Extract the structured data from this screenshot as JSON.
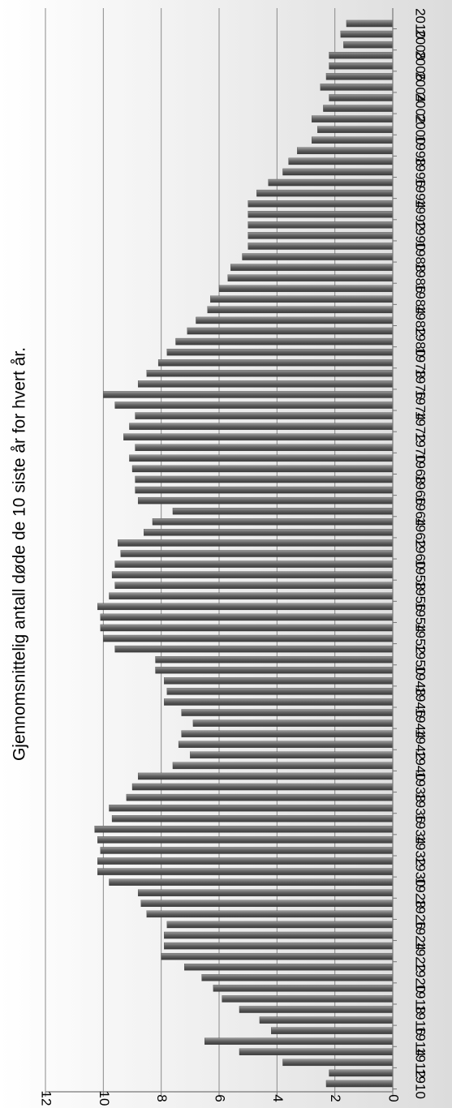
{
  "chart_data": {
    "type": "bar",
    "orientation": "horizontal",
    "title": "Gjennomsnittelig antall døde de 10 siste år for hvert år.",
    "xlabel": "",
    "ylabel": "",
    "value_axis": {
      "min": 0,
      "max": 12,
      "ticks": [
        0,
        2,
        4,
        6,
        8,
        10,
        12
      ]
    },
    "category_ticks": [
      "1910",
      "1912",
      "1914",
      "1916",
      "1918",
      "1920",
      "1922",
      "1924",
      "1926",
      "1928",
      "1930",
      "1932",
      "1934",
      "1936",
      "1938",
      "1940",
      "1942",
      "1944",
      "1946",
      "1948",
      "1950",
      "1952",
      "1954",
      "1956",
      "1958",
      "1960",
      "1962",
      "1964",
      "1966",
      "1968",
      "1970",
      "1972",
      "1974",
      "1976",
      "1978",
      "1980",
      "1982",
      "1984",
      "1986",
      "1988",
      "1990",
      "1992",
      "1994",
      "1996",
      "1998",
      "2000",
      "2002",
      "2004",
      "2006",
      "2008",
      "2010"
    ],
    "grid": true,
    "legend": "none",
    "bar_color": "#6a6a6a",
    "background_color": "#e6e6e6",
    "series": [
      {
        "x": [
          1910,
          1911,
          1912,
          1913,
          1914,
          1915,
          1916,
          1917,
          1918,
          1919,
          1920,
          1921,
          1922,
          1923,
          1924,
          1925,
          1926,
          1927,
          1928,
          1929,
          1930,
          1931,
          1932,
          1933,
          1934,
          1935,
          1936,
          1937,
          1938,
          1939,
          1940,
          1941,
          1942,
          1943,
          1944,
          1945,
          1946,
          1947,
          1948,
          1949,
          1950,
          1951,
          1952,
          1953,
          1954,
          1955,
          1956,
          1957,
          1958,
          1959,
          1960,
          1961,
          1962,
          1963,
          1964,
          1965,
          1966,
          1967,
          1968,
          1969,
          1970,
          1971,
          1972,
          1973,
          1974,
          1975,
          1976,
          1977,
          1978,
          1979,
          1980,
          1981,
          1982,
          1983,
          1984,
          1985,
          1986,
          1987,
          1988,
          1989,
          1990,
          1991,
          1992,
          1993,
          1994,
          1995,
          1996,
          1997,
          1998,
          1999,
          2000,
          2001,
          2002,
          2003,
          2004,
          2005,
          2006,
          2007,
          2008,
          2009,
          2010
        ],
        "values": [
          2.3,
          2.2,
          3.8,
          5.3,
          6.5,
          4.2,
          4.6,
          5.3,
          5.9,
          6.2,
          6.6,
          7.2,
          8.0,
          7.9,
          7.9,
          7.8,
          8.5,
          8.7,
          8.8,
          9.8,
          10.2,
          10.2,
          10.1,
          10.2,
          10.3,
          9.7,
          9.8,
          9.2,
          9.0,
          8.8,
          7.6,
          7.0,
          7.4,
          7.3,
          6.9,
          7.3,
          7.9,
          7.8,
          7.9,
          8.2,
          8.2,
          9.6,
          10.0,
          10.1,
          10.1,
          10.2,
          9.8,
          9.6,
          9.7,
          9.6,
          9.4,
          9.5,
          8.6,
          8.3,
          7.6,
          8.8,
          8.9,
          8.9,
          9.0,
          9.1,
          8.9,
          9.3,
          9.1,
          8.9,
          9.6,
          10.0,
          8.8,
          8.5,
          8.1,
          7.8,
          7.5,
          7.1,
          6.8,
          6.4,
          6.3,
          6.0,
          5.7,
          5.6,
          5.2,
          5.0,
          5.0,
          5.0,
          5.0,
          5.0,
          4.7,
          4.3,
          3.8,
          3.6,
          3.3,
          2.8,
          2.6,
          2.8,
          2.4,
          2.2,
          2.5,
          2.3,
          2.2,
          2.2,
          1.7,
          1.8,
          1.6
        ]
      }
    ]
  }
}
